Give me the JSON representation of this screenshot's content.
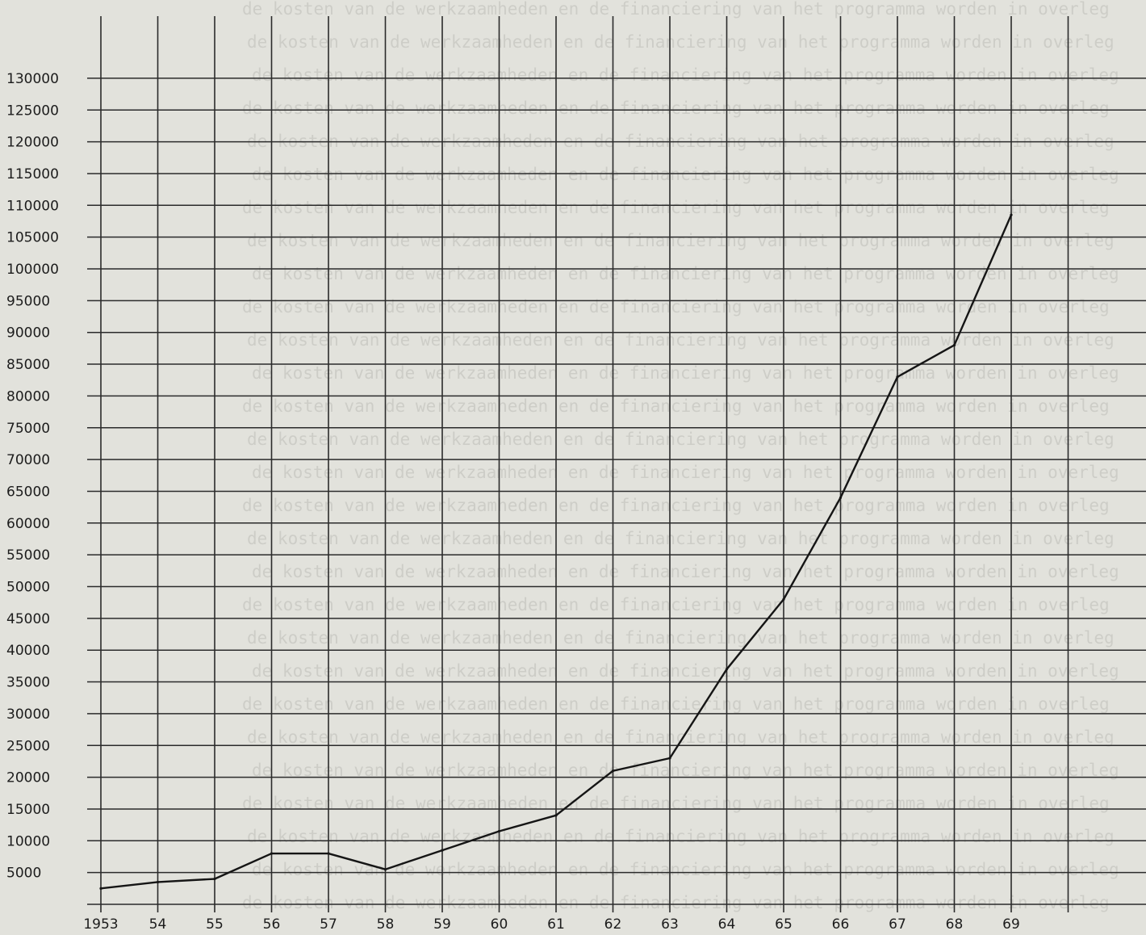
{
  "chart_data": {
    "type": "line",
    "title": "",
    "xlabel": "",
    "ylabel": "",
    "x_tick_labels": [
      "1953",
      "54",
      "55",
      "56",
      "57",
      "58",
      "59",
      "60",
      "61",
      "62",
      "63",
      "64",
      "65",
      "66",
      "67",
      "68",
      "69"
    ],
    "y_tick_labels": [
      "5000",
      "10000",
      "15000",
      "20000",
      "25000",
      "30000",
      "35000",
      "40000",
      "45000",
      "50000",
      "55000",
      "60000",
      "65000",
      "70000",
      "75000",
      "80000",
      "85000",
      "90000",
      "95000",
      "100000",
      "105000",
      "110000",
      "115000",
      "120000",
      "125000",
      "130000"
    ],
    "ylim": [
      0,
      132000
    ],
    "grid": true,
    "series": [
      {
        "x": [
          1953,
          1954,
          1955,
          1956,
          1957,
          1958,
          1959,
          1960,
          1961,
          1962,
          1963,
          1964,
          1965,
          1966,
          1967,
          1968,
          1969
        ],
        "values": [
          2500,
          3500,
          4000,
          8000,
          8000,
          5500,
          8500,
          11500,
          14000,
          21000,
          23000,
          37000,
          48000,
          64000,
          83000,
          88000,
          108500
        ]
      }
    ]
  }
}
